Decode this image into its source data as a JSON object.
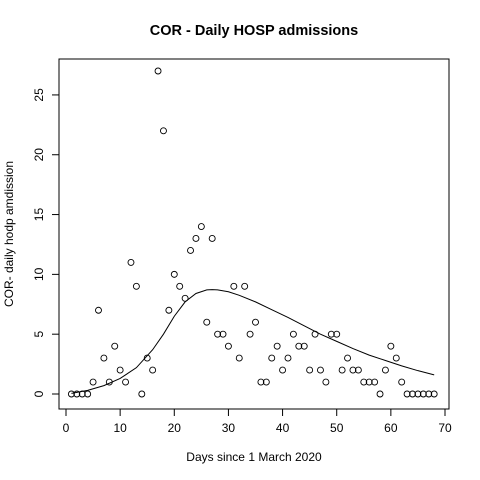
{
  "chart_data": {
    "type": "scatter",
    "title": "COR - Daily HOSP admissions",
    "xlabel": "Days since 1 March 2020",
    "ylabel": "COR- daily hodp amdission",
    "xlim": [
      0,
      70
    ],
    "ylim": [
      0,
      27
    ],
    "xticks": [
      0,
      10,
      20,
      30,
      40,
      50,
      60,
      70
    ],
    "yticks": [
      0,
      5,
      10,
      15,
      20,
      25
    ],
    "grid": false,
    "legend": "none",
    "series": [
      {
        "kind": "points",
        "x": [
          1,
          2,
          3,
          4,
          5,
          6,
          7,
          8,
          9,
          10,
          11,
          12,
          13,
          14,
          15,
          16,
          17,
          18,
          19,
          20,
          21,
          22,
          23,
          24,
          25,
          26,
          27,
          28,
          29,
          30,
          31,
          32,
          33,
          34,
          35,
          36,
          37,
          38,
          39,
          40,
          41,
          42,
          43,
          44,
          45,
          46,
          47,
          48,
          49,
          50,
          51,
          52,
          53,
          54,
          55,
          56,
          57,
          58,
          59,
          60,
          61,
          62,
          63,
          64,
          65,
          66,
          67,
          68
        ],
        "y": [
          0,
          0,
          0,
          0,
          1,
          7,
          3,
          1,
          4,
          2,
          1,
          11,
          9,
          0,
          3,
          2,
          27,
          22,
          7,
          10,
          9,
          8,
          12,
          13,
          14,
          6,
          13,
          5,
          5,
          4,
          9,
          3,
          9,
          5,
          6,
          1,
          1,
          3,
          4,
          2,
          3,
          5,
          4,
          4,
          2,
          5,
          2,
          1,
          5,
          5,
          2,
          3,
          2,
          2,
          1,
          1,
          1,
          0,
          2,
          4,
          3,
          1,
          0,
          0,
          0,
          0,
          0,
          0
        ]
      },
      {
        "kind": "fitted-curve",
        "x": [
          1,
          4,
          7,
          10,
          13,
          16,
          18,
          20,
          22,
          24,
          26,
          27,
          28,
          30,
          32,
          35,
          38,
          41,
          44,
          47,
          50,
          53,
          56,
          59,
          62,
          65,
          68
        ],
        "y": [
          0.05,
          0.3,
          0.7,
          1.3,
          2.2,
          3.7,
          5.0,
          6.5,
          7.7,
          8.4,
          8.7,
          8.72,
          8.7,
          8.55,
          8.25,
          7.7,
          7.05,
          6.4,
          5.7,
          5.0,
          4.4,
          3.8,
          3.25,
          2.8,
          2.35,
          1.95,
          1.6
        ]
      }
    ]
  }
}
